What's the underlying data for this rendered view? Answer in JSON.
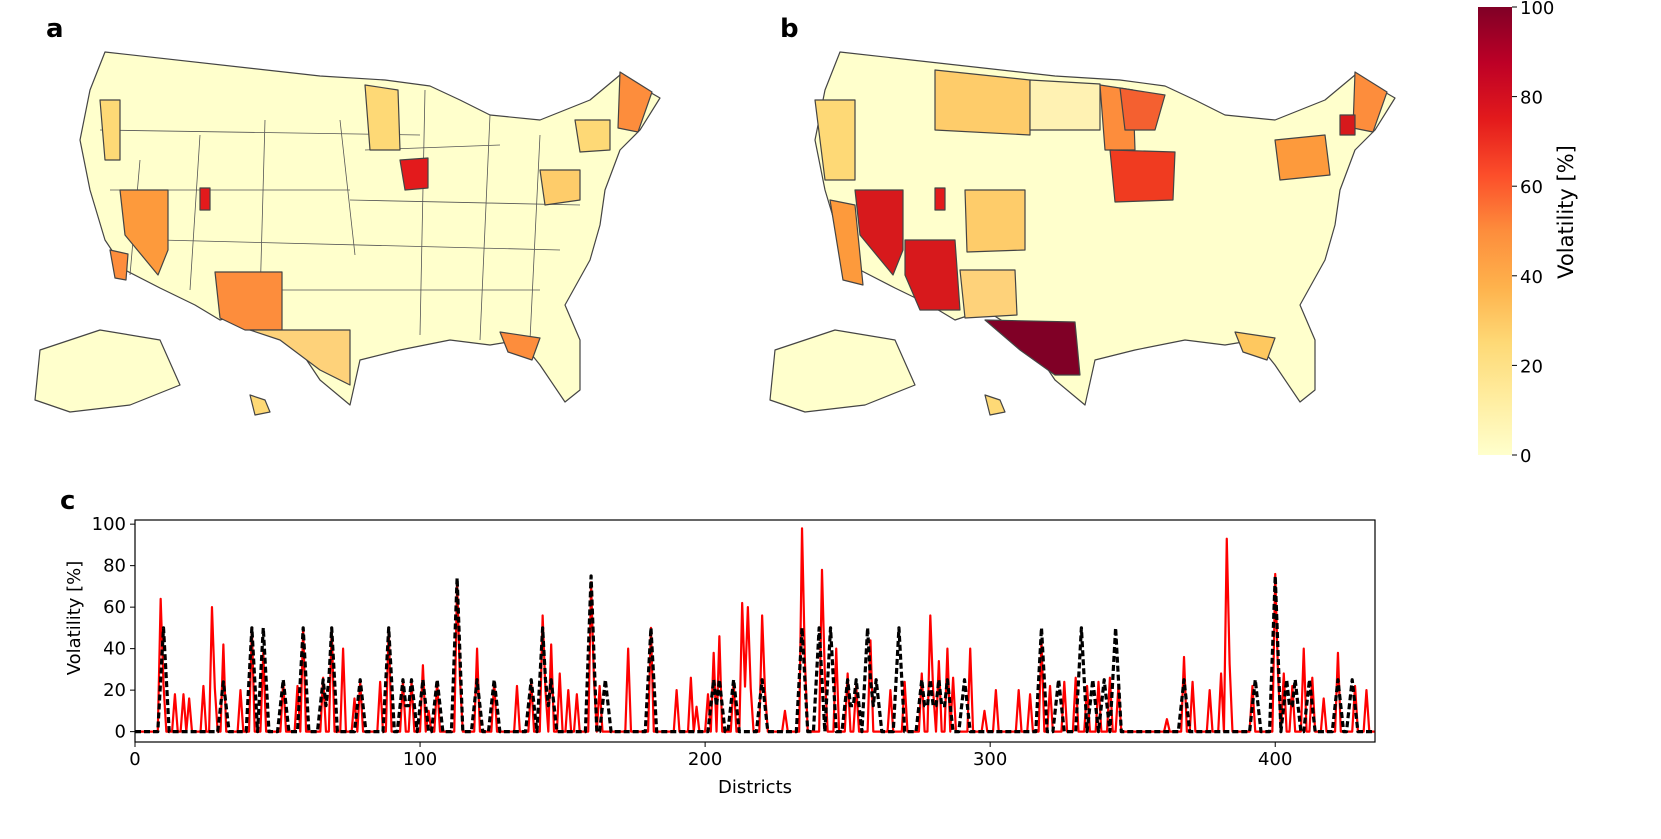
{
  "panels": {
    "a": "a",
    "b": "b",
    "c": "c"
  },
  "colorbar": {
    "label": "Volatility [%]",
    "ticks": [
      "0",
      "20",
      "40",
      "60",
      "80",
      "100"
    ],
    "range": [
      0,
      100
    ],
    "colormap": [
      "#ffffcc",
      "#ffeda0",
      "#fed976",
      "#feb24c",
      "#fd8d3c",
      "#fc4e2a",
      "#e31a1c",
      "#bd0026",
      "#800026"
    ]
  },
  "colors": {
    "red_series": "#ff0000",
    "black_series": "#000000",
    "map_border": "#444444"
  },
  "chart_data": {
    "type": "line",
    "xlabel": "Districts",
    "ylabel": "Volatility [%]",
    "xlim": [
      0,
      435
    ],
    "ylim": [
      -5,
      102
    ],
    "xticks": [
      0,
      100,
      200,
      300,
      400
    ],
    "yticks": [
      0,
      20,
      40,
      60,
      80,
      100
    ],
    "series": [
      {
        "style": "solid",
        "color": "#ff0000",
        "peaks": [
          [
            9,
            64
          ],
          [
            14,
            18
          ],
          [
            17,
            18
          ],
          [
            19,
            16
          ],
          [
            24,
            22
          ],
          [
            27,
            60
          ],
          [
            31,
            42
          ],
          [
            37,
            20
          ],
          [
            41,
            50
          ],
          [
            45,
            38
          ],
          [
            52,
            24
          ],
          [
            57,
            22
          ],
          [
            59,
            50
          ],
          [
            66,
            26
          ],
          [
            69,
            50
          ],
          [
            73,
            40
          ],
          [
            77,
            16
          ],
          [
            79,
            24
          ],
          [
            86,
            24
          ],
          [
            89,
            50
          ],
          [
            94,
            24
          ],
          [
            97,
            24
          ],
          [
            101,
            32
          ],
          [
            103,
            10
          ],
          [
            106,
            24
          ],
          [
            113,
            72
          ],
          [
            120,
            40
          ],
          [
            126,
            24
          ],
          [
            134,
            22
          ],
          [
            139,
            24
          ],
          [
            143,
            56
          ],
          [
            146,
            42
          ],
          [
            149,
            28
          ],
          [
            152,
            20
          ],
          [
            155,
            18
          ],
          [
            160,
            72
          ],
          [
            163,
            22
          ],
          [
            173,
            40
          ],
          [
            181,
            50
          ],
          [
            190,
            20
          ],
          [
            195,
            26
          ],
          [
            197,
            12
          ],
          [
            201,
            18
          ],
          [
            203,
            38
          ],
          [
            205,
            46
          ],
          [
            210,
            24
          ],
          [
            213,
            62
          ],
          [
            215,
            60
          ],
          [
            220,
            56
          ],
          [
            228,
            10
          ],
          [
            234,
            98
          ],
          [
            241,
            78
          ],
          [
            246,
            40
          ],
          [
            250,
            28
          ],
          [
            253,
            22
          ],
          [
            258,
            44
          ],
          [
            265,
            20
          ],
          [
            270,
            24
          ],
          [
            276,
            28
          ],
          [
            279,
            56
          ],
          [
            282,
            34
          ],
          [
            285,
            40
          ],
          [
            287,
            26
          ],
          [
            293,
            40
          ],
          [
            298,
            10
          ],
          [
            302,
            20
          ],
          [
            310,
            20
          ],
          [
            314,
            18
          ],
          [
            318,
            44
          ],
          [
            321,
            22
          ],
          [
            326,
            24
          ],
          [
            330,
            26
          ],
          [
            334,
            22
          ],
          [
            338,
            24
          ],
          [
            342,
            26
          ],
          [
            345,
            22
          ],
          [
            362,
            6
          ],
          [
            368,
            36
          ],
          [
            371,
            24
          ],
          [
            377,
            20
          ],
          [
            381,
            28
          ],
          [
            383,
            93
          ],
          [
            392,
            22
          ],
          [
            400,
            76
          ],
          [
            403,
            28
          ],
          [
            406,
            22
          ],
          [
            410,
            40
          ],
          [
            413,
            26
          ],
          [
            417,
            16
          ],
          [
            422,
            38
          ],
          [
            428,
            22
          ],
          [
            432,
            20
          ]
        ]
      },
      {
        "style": "dashed",
        "color": "#000000",
        "peaks": [
          [
            10,
            50
          ],
          [
            31,
            24
          ],
          [
            41,
            50
          ],
          [
            45,
            50
          ],
          [
            52,
            25
          ],
          [
            59,
            50
          ],
          [
            66,
            25
          ],
          [
            69,
            50
          ],
          [
            79,
            25
          ],
          [
            89,
            50
          ],
          [
            94,
            25
          ],
          [
            97,
            25
          ],
          [
            101,
            25
          ],
          [
            106,
            25
          ],
          [
            113,
            74
          ],
          [
            120,
            25
          ],
          [
            126,
            25
          ],
          [
            139,
            25
          ],
          [
            143,
            50
          ],
          [
            146,
            25
          ],
          [
            160,
            75
          ],
          [
            165,
            25
          ],
          [
            181,
            50
          ],
          [
            203,
            25
          ],
          [
            205,
            25
          ],
          [
            210,
            25
          ],
          [
            220,
            25
          ],
          [
            234,
            50
          ],
          [
            240,
            50
          ],
          [
            244,
            50
          ],
          [
            250,
            25
          ],
          [
            253,
            25
          ],
          [
            257,
            50
          ],
          [
            260,
            25
          ],
          [
            268,
            50
          ],
          [
            276,
            25
          ],
          [
            279,
            25
          ],
          [
            282,
            25
          ],
          [
            285,
            25
          ],
          [
            291,
            25
          ],
          [
            318,
            50
          ],
          [
            324,
            25
          ],
          [
            332,
            50
          ],
          [
            336,
            25
          ],
          [
            340,
            25
          ],
          [
            344,
            50
          ],
          [
            368,
            25
          ],
          [
            393,
            25
          ],
          [
            400,
            75
          ],
          [
            404,
            25
          ],
          [
            407,
            25
          ],
          [
            412,
            25
          ],
          [
            422,
            25
          ],
          [
            427,
            25
          ]
        ]
      }
    ]
  }
}
